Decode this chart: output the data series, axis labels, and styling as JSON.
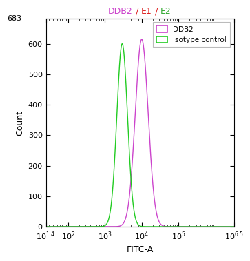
{
  "title_parts": [
    {
      "text": "DDB2",
      "color": "#cc44cc"
    },
    {
      "text": " / ",
      "color": "#dd2222"
    },
    {
      "text": "E1",
      "color": "#dd2222"
    },
    {
      "text": " / ",
      "color": "#dd2222"
    },
    {
      "text": "E2",
      "color": "#33aa33"
    }
  ],
  "xlabel": "FITC-A",
  "ylabel": "Count",
  "xmin_log": 1.4,
  "xmax_log": 6.5,
  "ymin": 0,
  "ymax": 683,
  "yticks": [
    0,
    100,
    200,
    300,
    400,
    500,
    600
  ],
  "ytick_top": 683,
  "xtick_labels": [
    "10^{1.4}",
    "10^{2}",
    "10^{3}",
    "10^{4}",
    "10^{5}",
    "10^{6.5}"
  ],
  "xtick_values_log": [
    1.4,
    2,
    3,
    4,
    5,
    6.5
  ],
  "curve_ddb2": {
    "peak_log": 4.0,
    "sigma_log": 0.175,
    "amplitude": 615,
    "color": "#cc44cc",
    "label": "DDB2"
  },
  "curve_isotype": {
    "peak_log": 3.47,
    "sigma_log": 0.145,
    "amplitude": 600,
    "color": "#22cc22",
    "label": "Isotype control"
  },
  "background_color": "#ffffff",
  "title_fontsize": 9,
  "axis_fontsize": 9,
  "tick_fontsize": 8
}
